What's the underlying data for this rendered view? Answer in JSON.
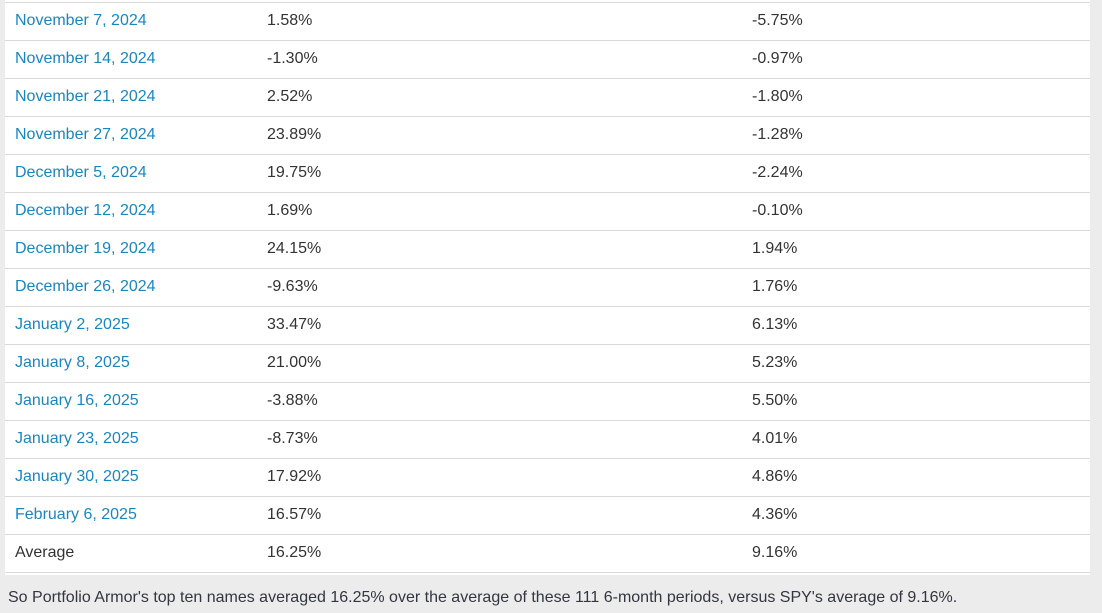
{
  "theme": {
    "page-bg": "#ececec",
    "card-bg": "#ffffff",
    "link": "#1a86c0",
    "text": "#333333",
    "border": "#d9d9d9",
    "footer-text": "#33363f"
  },
  "table": {
    "columns": [
      "date",
      "top_names_return",
      "spy_return"
    ],
    "rows": [
      {
        "label": "November 7, 2024",
        "top_names_return": "1.58%",
        "spy_return": "-5.75%",
        "is_link": true
      },
      {
        "label": "November 14, 2024",
        "top_names_return": "-1.30%",
        "spy_return": "-0.97%",
        "is_link": true
      },
      {
        "label": "November 21, 2024",
        "top_names_return": "2.52%",
        "spy_return": "-1.80%",
        "is_link": true
      },
      {
        "label": "November 27, 2024",
        "top_names_return": "23.89%",
        "spy_return": "-1.28%",
        "is_link": true
      },
      {
        "label": "December 5, 2024",
        "top_names_return": "19.75%",
        "spy_return": "-2.24%",
        "is_link": true
      },
      {
        "label": "December 12, 2024",
        "top_names_return": "1.69%",
        "spy_return": "-0.10%",
        "is_link": true
      },
      {
        "label": "December 19, 2024",
        "top_names_return": "24.15%",
        "spy_return": "1.94%",
        "is_link": true
      },
      {
        "label": "December 26, 2024",
        "top_names_return": "-9.63%",
        "spy_return": "1.76%",
        "is_link": true
      },
      {
        "label": "January 2, 2025",
        "top_names_return": "33.47%",
        "spy_return": "6.13%",
        "is_link": true
      },
      {
        "label": "January 8, 2025",
        "top_names_return": "21.00%",
        "spy_return": "5.23%",
        "is_link": true
      },
      {
        "label": "January 16, 2025",
        "top_names_return": "-3.88%",
        "spy_return": "5.50%",
        "is_link": true
      },
      {
        "label": "January 23, 2025",
        "top_names_return": "-8.73%",
        "spy_return": "4.01%",
        "is_link": true
      },
      {
        "label": "January 30, 2025",
        "top_names_return": "17.92%",
        "spy_return": "4.86%",
        "is_link": true
      },
      {
        "label": "February 6, 2025",
        "top_names_return": "16.57%",
        "spy_return": "4.36%",
        "is_link": true
      },
      {
        "label": "Average",
        "top_names_return": "16.25%",
        "spy_return": "9.16%",
        "is_link": false
      }
    ]
  },
  "footer": {
    "text": "So Portfolio Armor's top ten names averaged 16.25% over the average of these 111 6-month periods, versus SPY's average of 9.16%."
  }
}
